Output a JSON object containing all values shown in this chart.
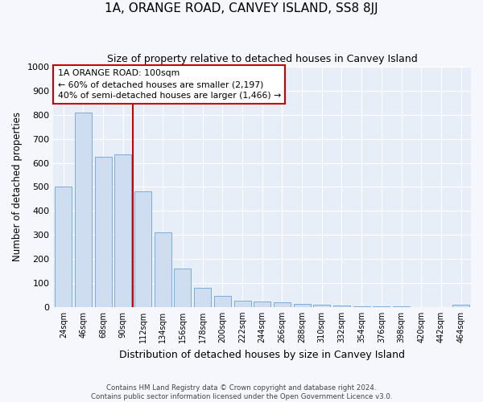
{
  "title": "1A, ORANGE ROAD, CANVEY ISLAND, SS8 8JJ",
  "subtitle": "Size of property relative to detached houses in Canvey Island",
  "xlabel": "Distribution of detached houses by size in Canvey Island",
  "ylabel": "Number of detached properties",
  "footer_line1": "Contains HM Land Registry data © Crown copyright and database right 2024.",
  "footer_line2": "Contains public sector information licensed under the Open Government Licence v3.0.",
  "categories": [
    "24sqm",
    "46sqm",
    "68sqm",
    "90sqm",
    "112sqm",
    "134sqm",
    "156sqm",
    "178sqm",
    "200sqm",
    "222sqm",
    "244sqm",
    "266sqm",
    "288sqm",
    "310sqm",
    "332sqm",
    "354sqm",
    "376sqm",
    "398sqm",
    "420sqm",
    "442sqm",
    "464sqm"
  ],
  "values": [
    500,
    810,
    625,
    635,
    480,
    310,
    160,
    80,
    45,
    25,
    22,
    18,
    12,
    9,
    5,
    3,
    2,
    2,
    1,
    1,
    8
  ],
  "bar_color": "#cfddf0",
  "bar_edge_color": "#6ba3d6",
  "vline_x": 3.5,
  "vline_color": "#cc0000",
  "annotation_title": "1A ORANGE ROAD: 100sqm",
  "annotation_line2": "← 60% of detached houses are smaller (2,197)",
  "annotation_line3": "40% of semi-detached houses are larger (1,466) →",
  "annotation_box_facecolor": "white",
  "annotation_box_edgecolor": "#cc0000",
  "ylim": [
    0,
    1000
  ],
  "yticks": [
    0,
    100,
    200,
    300,
    400,
    500,
    600,
    700,
    800,
    900,
    1000
  ],
  "ax_facecolor": "#e8eef8",
  "fig_facecolor": "#f5f7fc",
  "grid_color": "white",
  "title_fontsize": 11,
  "subtitle_fontsize": 9,
  "xlabel_fontsize": 9,
  "ylabel_fontsize": 8.5
}
